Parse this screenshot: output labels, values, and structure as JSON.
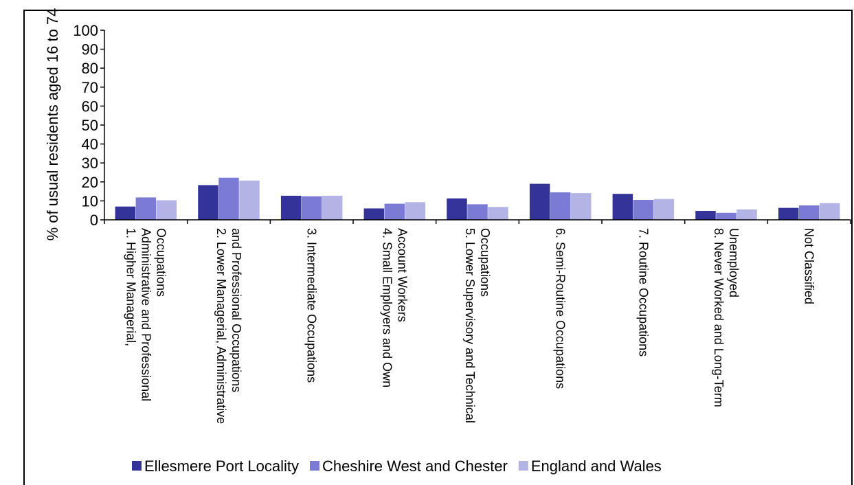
{
  "chart_data": {
    "type": "bar",
    "title": "",
    "xlabel": "",
    "ylabel": "% of usual residents aged 16 to 74",
    "ylim": [
      0,
      100
    ],
    "yticks": [
      0,
      10,
      20,
      30,
      40,
      50,
      60,
      70,
      80,
      90,
      100
    ],
    "grid": false,
    "legend_position": "bottom",
    "categories": [
      [
        "1. Higher Managerial,",
        "Administrative and Professional",
        "Occupations"
      ],
      [
        "2. Lower Managerial, Administrative",
        "and Professional Occupations"
      ],
      [
        "3. Intermediate Occupations"
      ],
      [
        "4. Small Employers and Own",
        "Account Workers"
      ],
      [
        "5. Lower Supervisory and Technical",
        "Occupations"
      ],
      [
        "6. Semi-Routine Occupations"
      ],
      [
        "7. Routine Occupations"
      ],
      [
        "8. Never Worked and Long-Term",
        "Unemployed"
      ],
      [
        "Not Classified"
      ]
    ],
    "series": [
      {
        "name": "Ellesmere Port Locality",
        "color": "#333399",
        "values": [
          7.0,
          18.3,
          12.7,
          6.0,
          11.3,
          19.0,
          13.7,
          4.7,
          6.3
        ]
      },
      {
        "name": "Cheshire West and Chester",
        "color": "#7b7bd6",
        "values": [
          11.8,
          22.2,
          12.4,
          8.5,
          8.2,
          14.5,
          10.5,
          3.7,
          7.6
        ]
      },
      {
        "name": "England and Wales",
        "color": "#b3b3e6",
        "values": [
          10.3,
          20.7,
          12.7,
          9.3,
          6.8,
          14.1,
          11.0,
          5.5,
          8.8
        ]
      }
    ]
  }
}
